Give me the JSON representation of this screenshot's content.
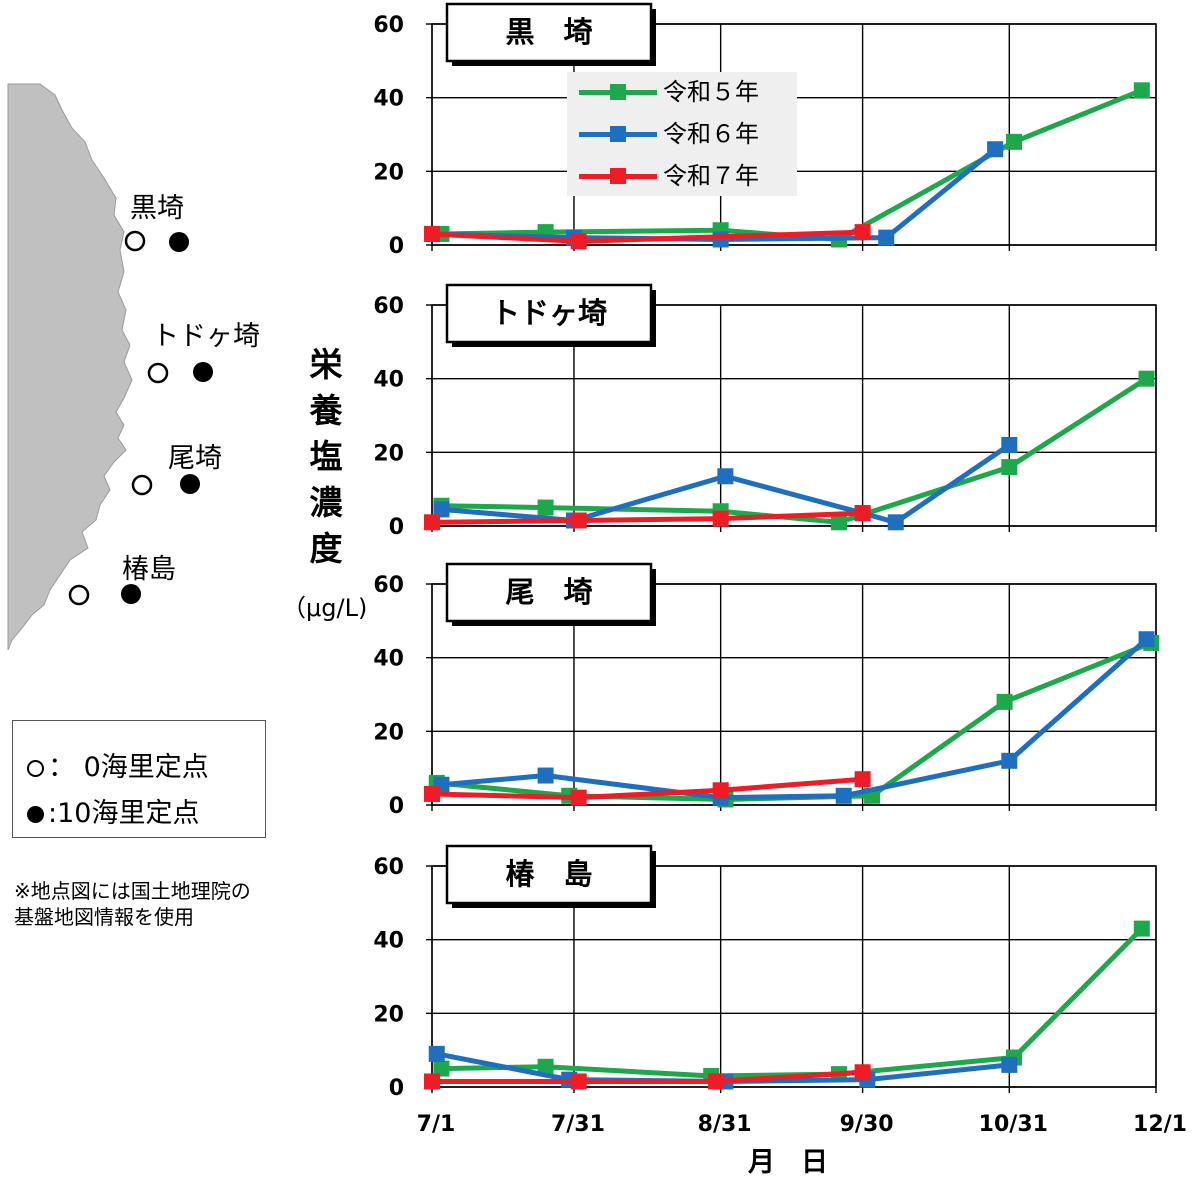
{
  "map": {
    "stations": [
      {
        "name": "黒埼"
      },
      {
        "name": "トドヶ埼"
      },
      {
        "name": "尾埼"
      },
      {
        "name": "椿島"
      }
    ]
  },
  "legend": {
    "open_label": "： 0海里定点",
    "filled_label": ":10海里定点"
  },
  "note": "※地点図には国土地理院の基盤地図情報を使用",
  "yaxis_title": "栄養塩濃度",
  "yaxis_unit": "（μg/L)",
  "xaxis_title": "月日",
  "colors": {
    "令和５年": "#1ea84c",
    "令和６年": "#1e6fc0",
    "令和７年": "#ee1c24"
  },
  "chart_data": [
    {
      "type": "line",
      "title": "黒　埼",
      "ylim": [
        0,
        60
      ],
      "yticks": [
        0,
        20,
        40,
        60
      ],
      "xlim": [
        "7/1",
        "12/1"
      ],
      "xticks": [
        "7/1",
        "7/31",
        "8/31",
        "9/30",
        "10/31",
        "12/1"
      ],
      "grid": true,
      "legend_position": "top-center",
      "series": [
        {
          "name": "令和５年",
          "color": "#1ea84c",
          "points": [
            [
              "7/3",
              3
            ],
            [
              "7/25",
              3.5
            ],
            [
              "8/31",
              4
            ],
            [
              "9/25",
              1.5
            ],
            [
              "11/1",
              28
            ],
            [
              "11/28",
              42
            ]
          ]
        },
        {
          "name": "令和６年",
          "color": "#1e6fc0",
          "points": [
            [
              "7/1",
              3
            ],
            [
              "7/31",
              2
            ],
            [
              "8/31",
              1.5
            ],
            [
              "10/5",
              2
            ],
            [
              "10/28",
              26
            ]
          ]
        },
        {
          "name": "令和７年",
          "color": "#ee1c24",
          "points": [
            [
              "7/1",
              3
            ],
            [
              "8/1",
              1
            ],
            [
              "9/30",
              3.5
            ]
          ]
        }
      ]
    },
    {
      "type": "line",
      "title": "トドヶ埼",
      "ylim": [
        0,
        60
      ],
      "yticks": [
        0,
        20,
        40,
        60
      ],
      "xlim": [
        "7/1",
        "12/1"
      ],
      "xticks": [
        "7/1",
        "7/31",
        "8/31",
        "9/30",
        "10/31",
        "12/1"
      ],
      "grid": true,
      "series": [
        {
          "name": "令和５年",
          "color": "#1ea84c",
          "points": [
            [
              "7/3",
              5.5
            ],
            [
              "7/25",
              5
            ],
            [
              "8/31",
              4
            ],
            [
              "9/25",
              1
            ],
            [
              "10/31",
              16
            ],
            [
              "11/29",
              40
            ]
          ]
        },
        {
          "name": "令和６年",
          "color": "#1e6fc0",
          "points": [
            [
              "7/3",
              4.5
            ],
            [
              "7/31",
              1.5
            ],
            [
              "9/1",
              13.5
            ],
            [
              "9/30",
              3.5
            ],
            [
              "10/7",
              1
            ],
            [
              "10/31",
              22
            ]
          ]
        },
        {
          "name": "令和７年",
          "color": "#ee1c24",
          "points": [
            [
              "7/1",
              1
            ],
            [
              "8/1",
              1.5
            ],
            [
              "8/31",
              2
            ],
            [
              "9/30",
              3.5
            ]
          ]
        }
      ]
    },
    {
      "type": "line",
      "title": "尾　埼",
      "ylim": [
        0,
        60
      ],
      "yticks": [
        0,
        20,
        40,
        60
      ],
      "xlim": [
        "7/1",
        "12/1"
      ],
      "xticks": [
        "7/1",
        "7/31",
        "8/31",
        "9/30",
        "10/31",
        "12/1"
      ],
      "grid": true,
      "series": [
        {
          "name": "令和５年",
          "color": "#1ea84c",
          "points": [
            [
              "7/2",
              6
            ],
            [
              "7/30",
              2.5
            ],
            [
              "9/1",
              1.5
            ],
            [
              "10/2",
              2.5
            ],
            [
              "10/30",
              28
            ],
            [
              "11/30",
              44
            ]
          ]
        },
        {
          "name": "令和６年",
          "color": "#1e6fc0",
          "points": [
            [
              "7/3",
              5.5
            ],
            [
              "7/25",
              8
            ],
            [
              "8/31",
              2
            ],
            [
              "9/26",
              2.5
            ],
            [
              "10/31",
              12
            ],
            [
              "11/29",
              45
            ]
          ]
        },
        {
          "name": "令和７年",
          "color": "#ee1c24",
          "points": [
            [
              "7/1",
              3
            ],
            [
              "8/1",
              2
            ],
            [
              "8/31",
              4
            ],
            [
              "9/30",
              7
            ]
          ]
        }
      ]
    },
    {
      "type": "line",
      "title": "椿　島",
      "ylim": [
        0,
        60
      ],
      "yticks": [
        0,
        20,
        40,
        60
      ],
      "xlim": [
        "7/1",
        "12/1"
      ],
      "xticks": [
        "7/1",
        "7/31",
        "8/31",
        "9/30",
        "10/31",
        "12/1"
      ],
      "grid": true,
      "series": [
        {
          "name": "令和５年",
          "color": "#1ea84c",
          "points": [
            [
              "7/3",
              5
            ],
            [
              "7/25",
              5.5
            ],
            [
              "8/29",
              3
            ],
            [
              "9/25",
              3.5
            ],
            [
              "11/1",
              8
            ],
            [
              "11/28",
              43
            ]
          ]
        },
        {
          "name": "令和６年",
          "color": "#1e6fc0",
          "points": [
            [
              "7/2",
              9
            ],
            [
              "7/30",
              2
            ],
            [
              "9/1",
              1.5
            ],
            [
              "10/1",
              2
            ],
            [
              "10/31",
              6
            ]
          ]
        },
        {
          "name": "令和７年",
          "color": "#ee1c24",
          "points": [
            [
              "7/1",
              1.5
            ],
            [
              "8/1",
              1.5
            ],
            [
              "8/30",
              1.5
            ],
            [
              "9/30",
              4
            ]
          ]
        }
      ]
    }
  ]
}
